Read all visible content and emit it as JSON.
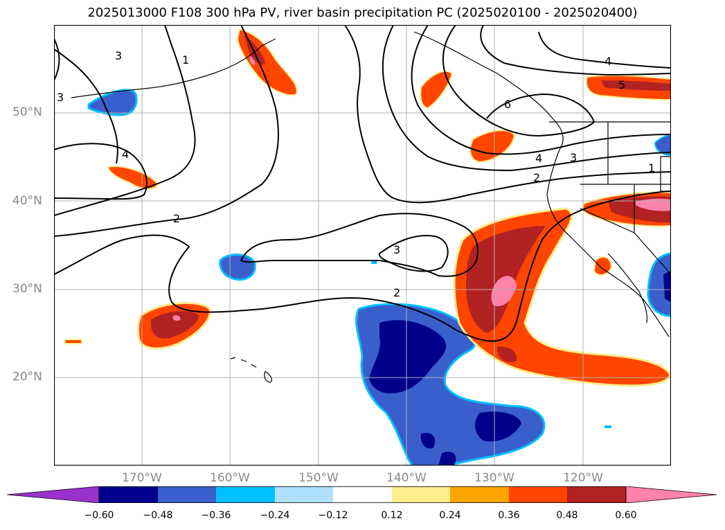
{
  "title": "2025013000 F108 300 hPa PV, river basin precipitation PC (2025020100 - 2025020400)",
  "map": {
    "extent": {
      "lon_min": -180,
      "lon_max": -110,
      "lat_min": 10,
      "lat_max": 60
    },
    "lat_ticks": [
      {
        "value": 50,
        "label": "50°N"
      },
      {
        "value": 40,
        "label": "40°N"
      },
      {
        "value": 30,
        "label": "30°N"
      },
      {
        "value": 20,
        "label": "20°N"
      }
    ],
    "lon_ticks": [
      {
        "value": -170,
        "label": "170°W"
      },
      {
        "value": -160,
        "label": "160°W"
      },
      {
        "value": -150,
        "label": "150°W"
      },
      {
        "value": -140,
        "label": "140°W"
      },
      {
        "value": -130,
        "label": "130°W"
      },
      {
        "value": -120,
        "label": "120°W"
      }
    ],
    "grid": true,
    "contour_labels": [
      "3",
      "1",
      "4",
      "2",
      "3",
      "2",
      "4",
      "6",
      "5",
      "4",
      "3",
      "2",
      "1",
      "3"
    ],
    "colors": {
      "neg_060_plus": "#9932cc",
      "neg_060": "#00008b",
      "neg_048": "#3a5fcd",
      "neg_036": "#00bfff",
      "neg_024": "#b0e2ff",
      "zero": "#ffffff",
      "pos_012": "#ffec8b",
      "pos_024": "#ffa500",
      "pos_036": "#ff4500",
      "pos_048": "#b22222",
      "pos_060": "#ff82ab"
    }
  },
  "colorbar": {
    "labels": [
      "−0.60",
      "−0.48",
      "−0.36",
      "−0.24",
      "−0.12",
      "0.12",
      "0.24",
      "0.36",
      "0.48",
      "0.60"
    ],
    "colors": [
      "#9932cc",
      "#00008b",
      "#3a5fcd",
      "#00bfff",
      "#b0e2ff",
      "#ffffff",
      "#ffec8b",
      "#ffa500",
      "#ff4500",
      "#b22222",
      "#ff82ab",
      "#ff82ab"
    ]
  }
}
